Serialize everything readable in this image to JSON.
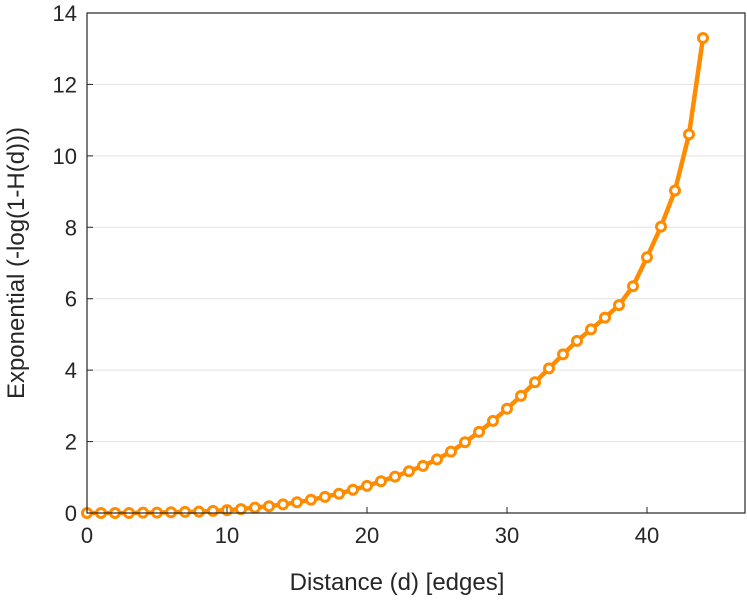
{
  "chart_data": {
    "type": "line",
    "title": "",
    "xlabel": "Distance (d) [edges]",
    "ylabel": "Exponential (-log(1-H(d)))",
    "xlim": [
      0,
      47
    ],
    "ylim": [
      0,
      14
    ],
    "xticks": [
      0,
      10,
      20,
      30,
      40
    ],
    "yticks": [
      0,
      2,
      4,
      6,
      8,
      10,
      12,
      14
    ],
    "grid": "horizontal",
    "legend": "none",
    "series": [
      {
        "color": "#ff8c00",
        "marker": "open-circle",
        "x": [
          0,
          1,
          2,
          3,
          4,
          5,
          6,
          7,
          8,
          9,
          10,
          11,
          12,
          13,
          14,
          15,
          16,
          17,
          18,
          19,
          20,
          21,
          22,
          23,
          24,
          25,
          26,
          27,
          28,
          29,
          30,
          31,
          32,
          33,
          34,
          35,
          36,
          37,
          38,
          39,
          40,
          41,
          42,
          43,
          44
        ],
        "y": [
          0.0,
          0.0,
          0.0,
          0.0,
          0.01,
          0.01,
          0.02,
          0.03,
          0.04,
          0.06,
          0.08,
          0.11,
          0.15,
          0.19,
          0.24,
          0.3,
          0.37,
          0.45,
          0.54,
          0.65,
          0.76,
          0.89,
          1.02,
          1.17,
          1.32,
          1.5,
          1.72,
          1.98,
          2.27,
          2.58,
          2.92,
          3.28,
          3.66,
          4.05,
          4.44,
          4.82,
          5.14,
          5.47,
          5.82,
          6.35,
          7.16,
          8.02,
          9.03,
          10.6,
          13.3
        ]
      }
    ]
  }
}
